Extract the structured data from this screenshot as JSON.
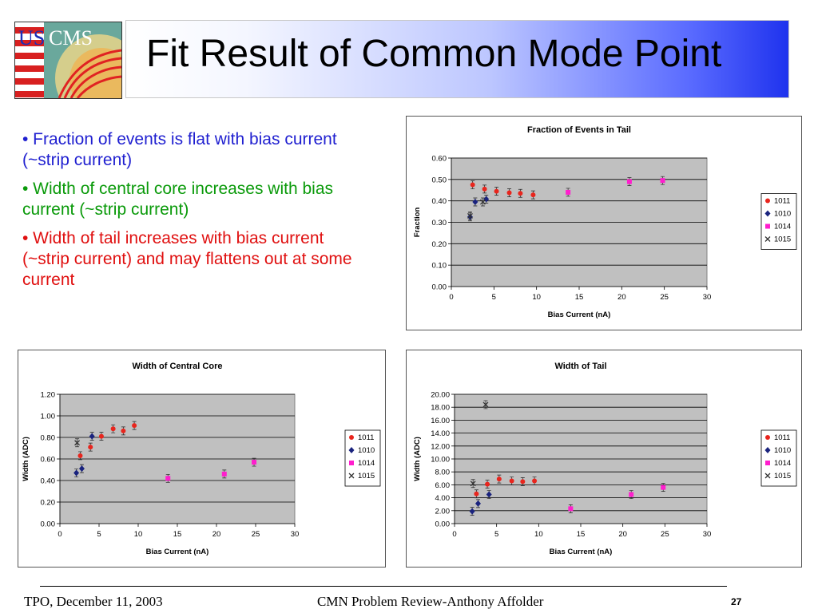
{
  "slide": {
    "title": "Fit Result of Common Mode Point",
    "logo_text": {
      "us": "US",
      "cms": "CMS"
    },
    "bullets": [
      {
        "text": "• Fraction of events is flat with bias current (~strip current)",
        "color": "#1f1fd0"
      },
      {
        "text": "• Width of central core increases with bias current (~strip current)",
        "color": "#0a9a0a"
      },
      {
        "text": "• Width of tail increases with bias current (~strip current) and may flattens out at some current",
        "color": "#e01010"
      }
    ],
    "footer": {
      "left": "TPO, December 11, 2003",
      "center": "CMN Problem Review-Anthony Affolder",
      "page": "27"
    }
  },
  "chart_data": [
    {
      "type": "scatter",
      "title": "Fraction of Events in Tail",
      "xlabel": "Bias Current (nA)",
      "ylabel": "Fraction",
      "xlim": [
        0,
        30
      ],
      "ylim": [
        0,
        0.6
      ],
      "xticks": [
        "0",
        "5",
        "10",
        "15",
        "20",
        "25",
        "30"
      ],
      "yticks": [
        "0.00",
        "0.10",
        "0.20",
        "0.30",
        "0.40",
        "0.50",
        "0.60"
      ],
      "grid": true,
      "legend": "right",
      "series": [
        {
          "name": "1011",
          "color": "#e8251d",
          "marker": "circle",
          "points": [
            [
              2.5,
              0.475
            ],
            [
              3.9,
              0.455
            ],
            [
              5.3,
              0.445
            ],
            [
              6.8,
              0.438
            ],
            [
              8.1,
              0.435
            ],
            [
              9.6,
              0.428
            ]
          ]
        },
        {
          "name": "1010",
          "color": "#1a237e",
          "marker": "diamond",
          "points": [
            [
              2.2,
              0.325
            ],
            [
              2.8,
              0.395
            ],
            [
              4.1,
              0.408
            ]
          ]
        },
        {
          "name": "1014",
          "color": "#ff1ecd",
          "marker": "square",
          "points": [
            [
              13.7,
              0.44
            ],
            [
              20.9,
              0.49
            ],
            [
              24.8,
              0.495
            ]
          ]
        },
        {
          "name": "1015",
          "color": "#333333",
          "marker": "x",
          "points": [
            [
              2.2,
              0.33
            ],
            [
              3.7,
              0.395
            ]
          ]
        }
      ]
    },
    {
      "type": "scatter",
      "title": "Width of Central Core",
      "xlabel": "Bias Current (nA)",
      "ylabel": "Width (ADC)",
      "xlim": [
        0,
        30
      ],
      "ylim": [
        0,
        1.2
      ],
      "xticks": [
        "0",
        "5",
        "10",
        "15",
        "20",
        "25",
        "30"
      ],
      "yticks": [
        "0.00",
        "0.20",
        "0.40",
        "0.60",
        "0.80",
        "1.00",
        "1.20"
      ],
      "grid": true,
      "legend": "right",
      "series": [
        {
          "name": "1011",
          "color": "#e8251d",
          "marker": "circle",
          "points": [
            [
              2.6,
              0.63
            ],
            [
              3.9,
              0.71
            ],
            [
              5.3,
              0.81
            ],
            [
              6.8,
              0.88
            ],
            [
              8.1,
              0.86
            ],
            [
              9.5,
              0.91
            ]
          ]
        },
        {
          "name": "1010",
          "color": "#1a237e",
          "marker": "diamond",
          "points": [
            [
              2.1,
              0.47
            ],
            [
              2.8,
              0.51
            ],
            [
              4.1,
              0.81
            ]
          ]
        },
        {
          "name": "1014",
          "color": "#ff1ecd",
          "marker": "square",
          "points": [
            [
              13.8,
              0.42
            ],
            [
              21.0,
              0.46
            ],
            [
              24.8,
              0.57
            ]
          ]
        },
        {
          "name": "1015",
          "color": "#333333",
          "marker": "x",
          "points": [
            [
              2.2,
              0.75
            ]
          ]
        }
      ]
    },
    {
      "type": "scatter",
      "title": "Width of Tail",
      "xlabel": "Bias Current (nA)",
      "ylabel": "Width (ADC)",
      "xlim": [
        0,
        30
      ],
      "ylim": [
        0,
        20
      ],
      "xticks": [
        "0",
        "5",
        "10",
        "15",
        "20",
        "25",
        "30"
      ],
      "yticks": [
        "0.00",
        "2.00",
        "4.00",
        "6.00",
        "8.00",
        "10.00",
        "12.00",
        "14.00",
        "16.00",
        "18.00",
        "20.00"
      ],
      "grid": true,
      "legend": "right",
      "series": [
        {
          "name": "1011",
          "color": "#e8251d",
          "marker": "circle",
          "points": [
            [
              2.6,
              4.6
            ],
            [
              3.9,
              6.1
            ],
            [
              5.3,
              6.9
            ],
            [
              6.8,
              6.6
            ],
            [
              8.1,
              6.5
            ],
            [
              9.5,
              6.6
            ]
          ]
        },
        {
          "name": "1010",
          "color": "#1a237e",
          "marker": "diamond",
          "points": [
            [
              2.1,
              1.9
            ],
            [
              2.8,
              3.1
            ],
            [
              4.1,
              4.5
            ]
          ]
        },
        {
          "name": "1014",
          "color": "#ff1ecd",
          "marker": "square",
          "points": [
            [
              13.8,
              2.3
            ],
            [
              21.0,
              4.5
            ],
            [
              24.8,
              5.6
            ]
          ]
        },
        {
          "name": "1015",
          "color": "#333333",
          "marker": "x",
          "points": [
            [
              2.2,
              6.2
            ],
            [
              3.7,
              18.4
            ]
          ]
        }
      ]
    }
  ]
}
